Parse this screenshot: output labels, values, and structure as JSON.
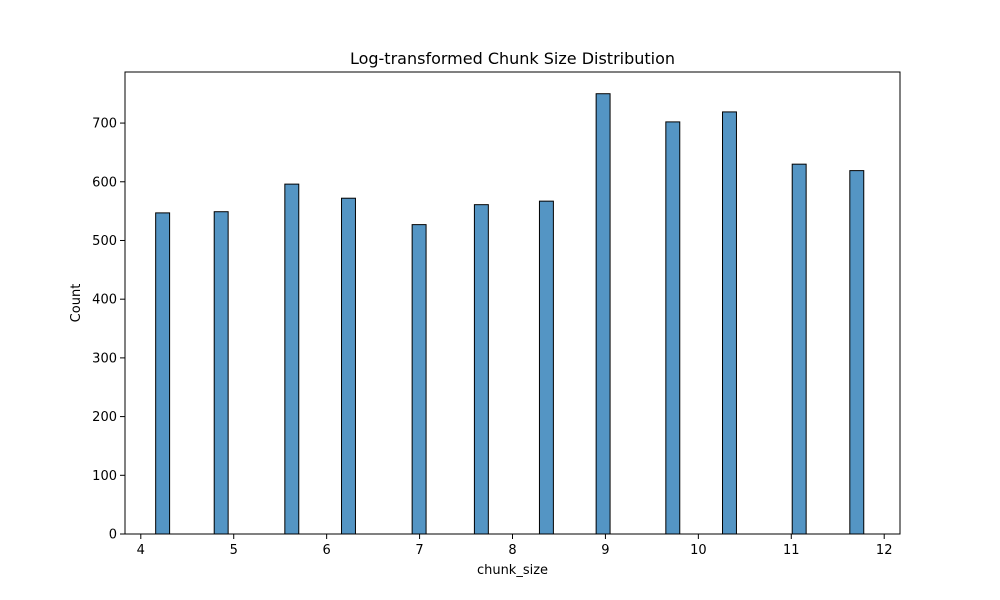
{
  "chart_data": {
    "type": "bar",
    "title": "Log-transformed Chunk Size Distribution",
    "xlabel": "chunk_size",
    "ylabel": "Count",
    "xlim": [
      3.83,
      12.17
    ],
    "ylim": [
      0,
      787
    ],
    "xticks": [
      4,
      5,
      6,
      7,
      8,
      9,
      10,
      11,
      12
    ],
    "yticks": [
      0,
      100,
      200,
      300,
      400,
      500,
      600,
      700
    ],
    "grid": false,
    "bar_color": "#5495c4",
    "bar_edge_color": "#000000",
    "bars": [
      {
        "left": 4.16,
        "right": 4.31,
        "count": 547
      },
      {
        "left": 4.79,
        "right": 4.94,
        "count": 549
      },
      {
        "left": 5.55,
        "right": 5.7,
        "count": 596
      },
      {
        "left": 6.16,
        "right": 6.31,
        "count": 572
      },
      {
        "left": 6.92,
        "right": 7.07,
        "count": 527
      },
      {
        "left": 7.59,
        "right": 7.74,
        "count": 561
      },
      {
        "left": 8.29,
        "right": 8.44,
        "count": 567
      },
      {
        "left": 8.9,
        "right": 9.05,
        "count": 750
      },
      {
        "left": 9.65,
        "right": 9.8,
        "count": 702
      },
      {
        "left": 10.26,
        "right": 10.41,
        "count": 719
      },
      {
        "left": 11.01,
        "right": 11.16,
        "count": 630
      },
      {
        "left": 11.63,
        "right": 11.78,
        "count": 619
      }
    ]
  }
}
